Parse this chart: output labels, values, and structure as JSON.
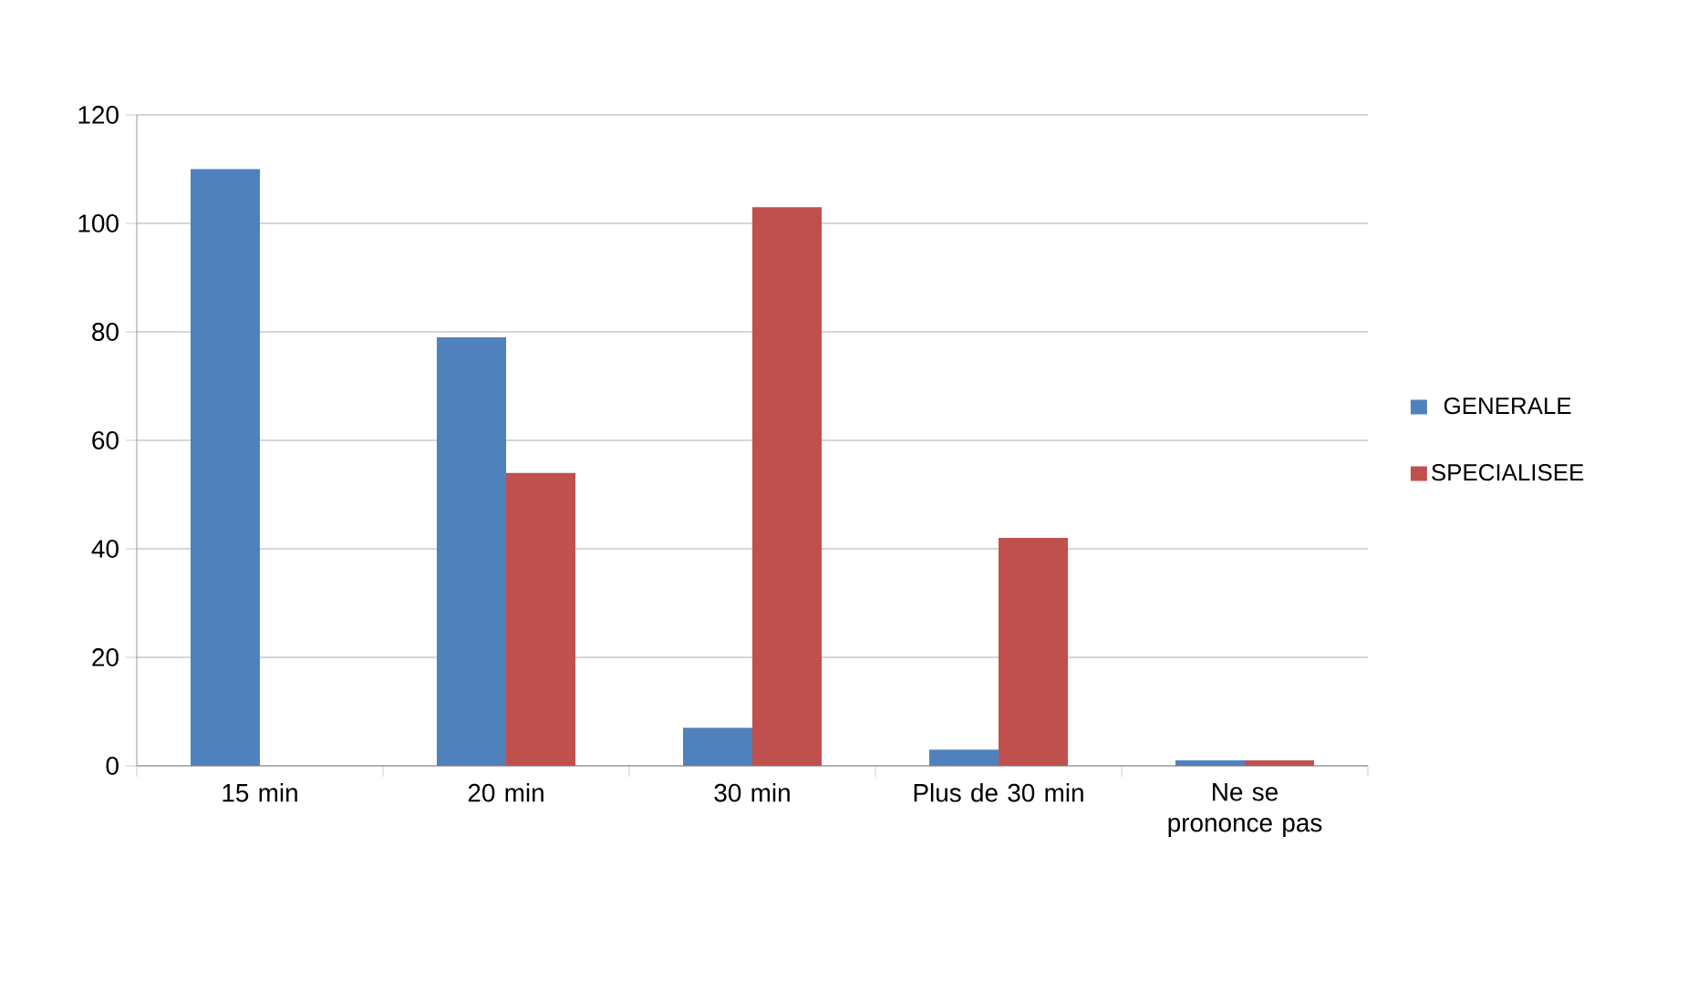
{
  "chart_data": {
    "type": "bar",
    "categories": [
      "15 min",
      "20 min",
      "30 min",
      "Plus de 30 min",
      "Ne se prononce pas"
    ],
    "series": [
      {
        "name": "GENERALE",
        "color": "#4f81bd",
        "values": [
          110,
          79,
          7,
          3,
          1
        ]
      },
      {
        "name": "SPECIALISEE",
        "color": "#c0504d",
        "values": [
          0,
          54,
          103,
          42,
          1
        ]
      }
    ],
    "ylim": [
      0,
      120
    ],
    "yticks": [
      0,
      20,
      40,
      60,
      80,
      100,
      120
    ],
    "grid": "y",
    "legend": "right"
  }
}
